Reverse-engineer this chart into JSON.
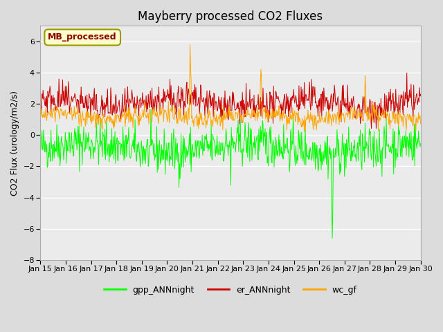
{
  "title": "Mayberry processed CO2 Fluxes",
  "ylabel": "CO2 Flux (urology/m2/s)",
  "ylim": [
    -8,
    7
  ],
  "yticks": [
    -8,
    -6,
    -4,
    -2,
    0,
    2,
    4,
    6
  ],
  "start_day": 15,
  "end_day": 30,
  "n_points": 720,
  "legend_labels": [
    "gpp_ANNnight",
    "er_ANNnight",
    "wc_gf"
  ],
  "legend_colors": [
    "#00FF00",
    "#CC0000",
    "#FFA500"
  ],
  "inset_label": "MB_processed",
  "inset_bg": "#FFFFCC",
  "inset_text_color": "#8B0000",
  "background_color": "#DCDCDC",
  "plot_bg": "#EBEBEB",
  "grid_color": "#FFFFFF",
  "title_fontsize": 12,
  "label_fontsize": 9,
  "tick_fontsize": 8,
  "legend_fontsize": 9,
  "seed": 42
}
